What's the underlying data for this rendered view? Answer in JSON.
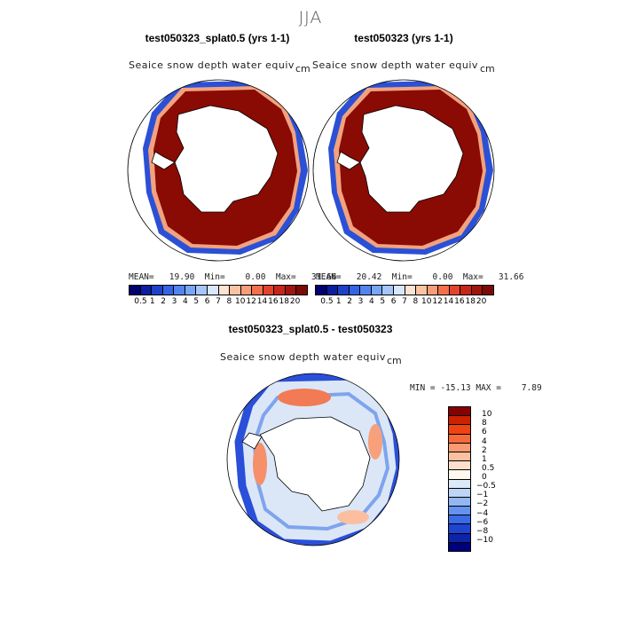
{
  "season": "JJA",
  "panels": [
    {
      "title": "test050323_splat0.5 (yrs 1-1)",
      "variable": "Seaice snow depth water equiv",
      "unit": "cm",
      "stats": "MEAN=   19.90  Min=    0.00  Max=   31.66"
    },
    {
      "title": "test050323 (yrs 1-1)",
      "variable": "Seaice snow depth water equiv",
      "unit": "cm",
      "stats": "MEAN=   20.42  Min=    0.00  Max=   31.66"
    }
  ],
  "diff": {
    "title": "test050323_splat0.5 - test050323",
    "variable": "Seaice snow depth water equiv",
    "unit": "cm",
    "stats": "MIN = -15.13 MAX =    7.89"
  },
  "colorbar_top": {
    "ticks": [
      "0.5",
      "1",
      "2",
      "3",
      "4",
      "5",
      "6",
      "7",
      "8",
      "10",
      "12",
      "14",
      "16",
      "18",
      "20"
    ],
    "colors": [
      "#00006e",
      "#0a1ea0",
      "#1f41c8",
      "#3563e6",
      "#5284f0",
      "#79a5f6",
      "#a6c6fb",
      "#d8e7fd",
      "#fde3d2",
      "#fbc3a4",
      "#f79d78",
      "#f2704c",
      "#e4432b",
      "#c7261a",
      "#a01510",
      "#7c0a06"
    ]
  },
  "colorbar_diff": {
    "ticks": [
      "10",
      "8",
      "6",
      "4",
      "2",
      "1",
      "0.5",
      "0",
      "−0.5",
      "−1",
      "−2",
      "−4",
      "−6",
      "−8",
      "−10"
    ],
    "colors": [
      "#880000",
      "#cc2200",
      "#ee4411",
      "#f56a3b",
      "#f89a72",
      "#fbc0a0",
      "#fde0cc",
      "#fff8ee",
      "#dce9f8",
      "#bdd5f6",
      "#92b7f2",
      "#6492ee",
      "#3a6ae6",
      "#1e44d0",
      "#0d24a8",
      "#00007a"
    ]
  },
  "chart_data": [
    {
      "type": "heatmap",
      "title": "test050323_splat0.5 (yrs 1-1)",
      "variable": "Seaice snow depth water equiv",
      "unit": "cm",
      "projection": "south polar stereographic",
      "mean": 19.9,
      "min": 0.0,
      "max": 31.66,
      "colorbar_levels": [
        0.5,
        1,
        2,
        3,
        4,
        5,
        6,
        7,
        8,
        10,
        12,
        14,
        16,
        18,
        20
      ]
    },
    {
      "type": "heatmap",
      "title": "test050323 (yrs 1-1)",
      "variable": "Seaice snow depth water equiv",
      "unit": "cm",
      "projection": "south polar stereographic",
      "mean": 20.42,
      "min": 0.0,
      "max": 31.66,
      "colorbar_levels": [
        0.5,
        1,
        2,
        3,
        4,
        5,
        6,
        7,
        8,
        10,
        12,
        14,
        16,
        18,
        20
      ]
    },
    {
      "type": "heatmap",
      "title": "test050323_splat0.5 - test050323",
      "variable": "Seaice snow depth water equiv",
      "unit": "cm",
      "projection": "south polar stereographic",
      "min": -15.13,
      "max": 7.89,
      "colorbar_levels": [
        10,
        8,
        6,
        4,
        2,
        1,
        0.5,
        0,
        -0.5,
        -1,
        -2,
        -4,
        -6,
        -8,
        -10
      ]
    }
  ]
}
